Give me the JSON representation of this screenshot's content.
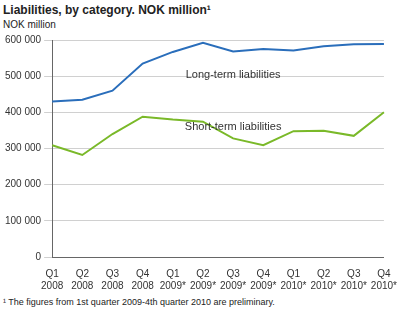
{
  "chart_data": {
    "type": "line",
    "title": "Liabilities, by category. NOK million¹",
    "y_label": "NOK million",
    "footnote": "¹ The figures from 1st quarter 2009-4th quarter 2010 are preliminary.",
    "categories": [
      "Q1 2008",
      "Q2 2008",
      "Q3 2008",
      "Q4 2008",
      "Q1 2009*",
      "Q2 2009*",
      "Q3 2009*",
      "Q4 2009*",
      "Q1 2010*",
      "Q2 2010*",
      "Q3 2010*",
      "Q4 2010*"
    ],
    "series": [
      {
        "name": "Long-term liabilities",
        "color": "#2a6ebb",
        "values": [
          430000,
          435000,
          460000,
          535000,
          567000,
          592000,
          568000,
          575000,
          571000,
          583000,
          588000,
          589000
        ]
      },
      {
        "name": "Short-term liabilities",
        "color": "#7ab929",
        "values": [
          309000,
          282000,
          340000,
          388000,
          380000,
          374000,
          328000,
          309000,
          348000,
          349000,
          335000,
          400000
        ]
      }
    ],
    "ylim": [
      0,
      600000
    ],
    "yticks": [
      0,
      {
        "value": 100000,
        "label": "100 000"
      },
      {
        "value": 200000,
        "label": "200 000"
      },
      {
        "value": 300000,
        "label": "300 000"
      },
      {
        "value": 400000,
        "label": "400 000"
      },
      {
        "value": 500000,
        "label": "500 000"
      },
      {
        "value": 600000,
        "label": "600 000"
      }
    ],
    "grid": true
  }
}
